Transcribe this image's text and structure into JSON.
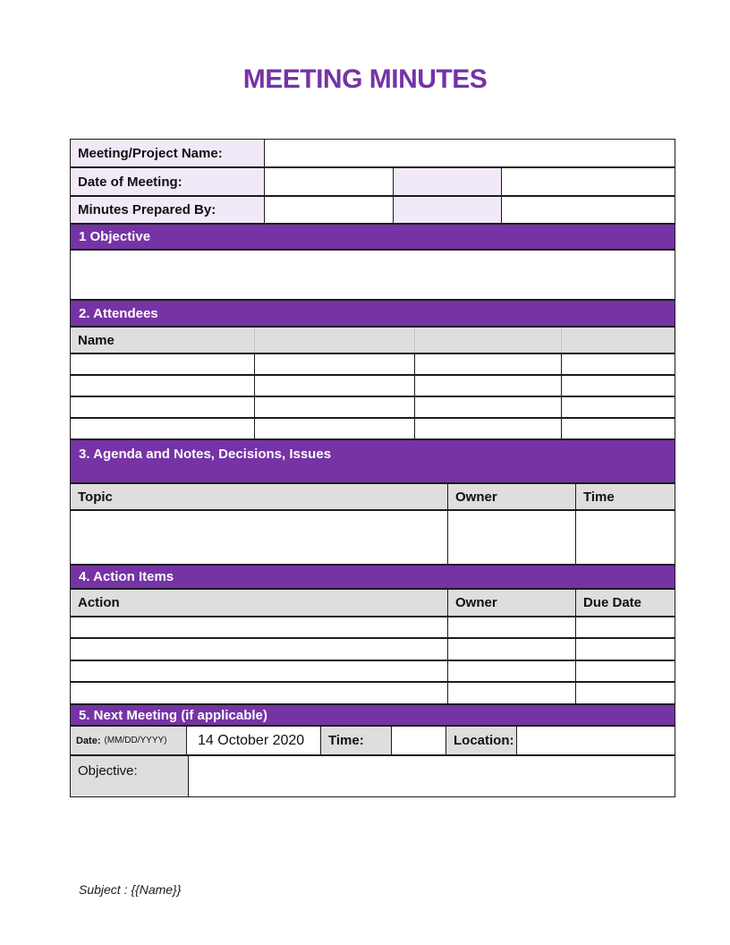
{
  "title": "MEETING MINUTES",
  "colors": {
    "purple": "#7633A5",
    "lavender": "#F1E9F8",
    "gray": "#DEDEDE"
  },
  "info_table": {
    "meeting_name_label": "Meeting/Project Name:",
    "date_of_meeting_label": "Date of Meeting:",
    "prepared_by_label": "Minutes Prepared By:"
  },
  "sections": {
    "objective": {
      "heading": "1 Objective"
    },
    "attendees": {
      "heading": "2. Attendees",
      "column_header": "Name"
    },
    "agenda": {
      "heading": "3. Agenda and Notes, Decisions, Issues",
      "columns": [
        "Topic",
        "Owner",
        "Time"
      ]
    },
    "action_items": {
      "heading": "4. Action Items",
      "columns": [
        "Action",
        "Owner",
        "Due Date"
      ]
    },
    "next_meeting": {
      "heading": "5. Next Meeting (if applicable)",
      "date_label": "Date:",
      "date_format": "(MM/DD/YYYY)",
      "date_value": "14 October 2020",
      "time_label": "Time:",
      "time_value": "",
      "location_label": "Location:",
      "location_value": "",
      "objective_label": "Objective:"
    }
  },
  "footer": {
    "subject": "Subject : {{Name}}"
  }
}
